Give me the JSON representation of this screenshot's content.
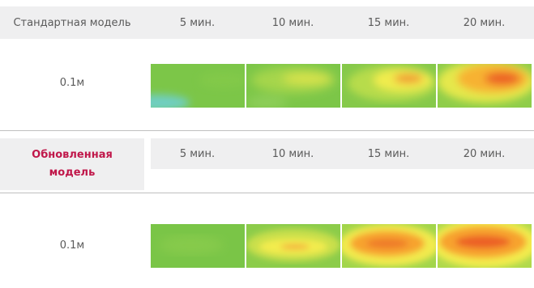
{
  "standard": {
    "title": "Стандартная модель",
    "times": [
      "5 мин.",
      "10 мин.",
      "15 мин.",
      "20 мин."
    ],
    "depth_label": "0.1м"
  },
  "updated": {
    "title_line1": "Обновленная",
    "title_line2": "модель",
    "times": [
      "5 мин.",
      "10 мин.",
      "15 мин.",
      "20 мин."
    ],
    "depth_label": "0.1м"
  },
  "colors": {
    "green": "#79c64a",
    "light_green": "#a6d64b",
    "yellow": "#f3ec4e",
    "orange": "#f7a32f",
    "red_orange": "#ec6127",
    "cyan": "#6fcfc2",
    "accent": "#c0174a",
    "header_bg": "#efeff0"
  }
}
